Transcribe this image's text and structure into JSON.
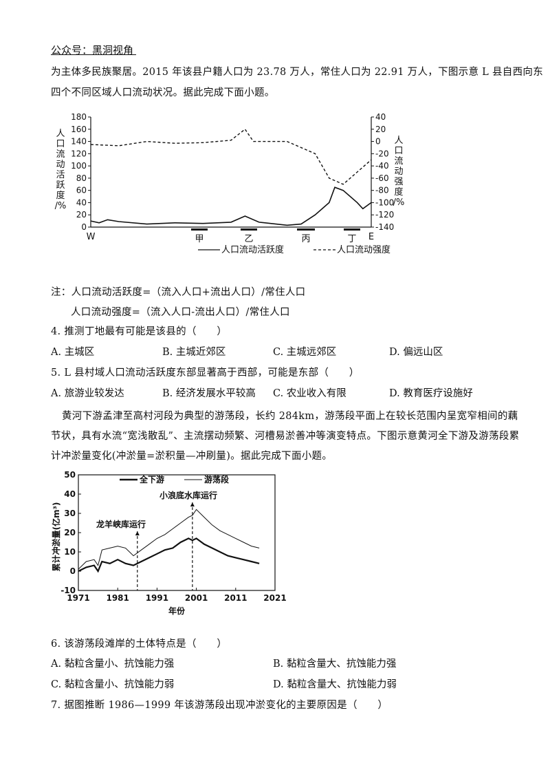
{
  "watermark": "公众号：黑洞视角",
  "intro": {
    "line1": "为主体多民族聚居。2015 年该县户籍人口为 23.78 万人，常住人口为 22.91 万人，下图示意 L 县自西向东",
    "line2": "四个不同区域人口流动状况。据此完成下面小题。"
  },
  "chart1": {
    "left_axis_label": [
      "人",
      "口",
      "流",
      "动",
      "活",
      "跃",
      "度",
      "/%"
    ],
    "right_axis_label": [
      "人",
      "口",
      "流",
      "动",
      "强",
      "度",
      "/%"
    ],
    "left_ticks": [
      "180",
      "160",
      "140",
      "120",
      "100",
      "80",
      "60",
      "40",
      "20",
      "0"
    ],
    "right_ticks": [
      "40",
      "20",
      "0",
      "-20",
      "-40",
      "-60",
      "-80",
      "-100",
      "-120",
      "-140"
    ],
    "x_start": "W",
    "x_end": "E",
    "regions": [
      "甲",
      "乙",
      "丙",
      "丁"
    ],
    "legend_solid": "人口流动活跃度",
    "legend_dashed": "人口流动强度"
  },
  "chart1_data": {
    "type": "line",
    "x_range": [
      "W",
      "E"
    ],
    "left_axis": {
      "label": "人口流动活跃度/%",
      "range": [
        0,
        180
      ]
    },
    "right_axis": {
      "label": "人口流动强度/%",
      "range": [
        -140,
        40
      ]
    },
    "series": [
      {
        "name": "人口流动活跃度",
        "style": "solid",
        "axis": "left",
        "points": [
          [
            0,
            10
          ],
          [
            0.03,
            7
          ],
          [
            0.06,
            12
          ],
          [
            0.1,
            9
          ],
          [
            0.2,
            5
          ],
          [
            0.3,
            7
          ],
          [
            0.4,
            6
          ],
          [
            0.5,
            8
          ],
          [
            0.55,
            18
          ],
          [
            0.6,
            8
          ],
          [
            0.7,
            3
          ],
          [
            0.75,
            5
          ],
          [
            0.8,
            20
          ],
          [
            0.85,
            40
          ],
          [
            0.87,
            65
          ],
          [
            0.9,
            60
          ],
          [
            0.95,
            40
          ],
          [
            0.97,
            30
          ],
          [
            1,
            40
          ]
        ]
      },
      {
        "name": "人口流动强度",
        "style": "dashed",
        "axis": "right",
        "points": [
          [
            0,
            -5
          ],
          [
            0.1,
            -7
          ],
          [
            0.2,
            0
          ],
          [
            0.3,
            -3
          ],
          [
            0.4,
            -2
          ],
          [
            0.5,
            2
          ],
          [
            0.55,
            20
          ],
          [
            0.58,
            0
          ],
          [
            0.7,
            0
          ],
          [
            0.8,
            -20
          ],
          [
            0.85,
            -60
          ],
          [
            0.9,
            -70
          ],
          [
            0.95,
            -50
          ],
          [
            1,
            -30
          ]
        ]
      }
    ]
  },
  "notes": {
    "note1": "注：人口流动活跃度=（流入人口+流出人口）/常住人口",
    "note2": "人口流动强度=（流入人口-流出人口）/常住人口"
  },
  "q4": {
    "stem": "4. 推测丁地最有可能是该县的（　　）",
    "a": "A.  主城区",
    "b": "B.  主城近郊区",
    "c": "C.  主城远郊区",
    "d": "D.  偏远山区"
  },
  "q5": {
    "stem": "5. L 县村域人口流动活跃度东部显著高于西部，可能是东部（　　）",
    "a": "A.  旅游业较发达",
    "b": "B.  经济发展水平较高",
    "c": "C.  农业收入有限",
    "d": "D.  教育医疗设施好"
  },
  "passage2": {
    "line1": "黄河下游孟津至高村河段为典型的游荡段，长约 284km，游荡段平面上在较长范围内呈宽窄相间的藕",
    "line2": "节状，具有水流“宽浅散乱”、主流摆动频繁、河槽易淤善冲等演变特点。下图示意黄河全下游及游荡段累",
    "line3": "计冲淤量变化(冲淤量=淤积量—冲刷量)。据此完成下面小题。"
  },
  "chart2": {
    "legend_full": "全下游",
    "legend_wander": "游荡段",
    "ylabel": "累计冲淤量(亿m³)",
    "xlabel": "年份",
    "y_ticks": [
      "50",
      "40",
      "30",
      "20",
      "10",
      "0",
      "-10"
    ],
    "x_ticks": [
      "1971",
      "1981",
      "1991",
      "2001",
      "2011",
      "2021"
    ],
    "annotation1": "龙羊峡库运行",
    "annotation2": "小浪底水库运行"
  },
  "chart2_data": {
    "type": "line",
    "xlabel": "年份",
    "ylabel": "累计冲淤量(亿m³)",
    "xlim": [
      1971,
      2021
    ],
    "ylim": [
      -10,
      50
    ],
    "x": [
      1971,
      1973,
      1975,
      1976,
      1977,
      1979,
      1981,
      1983,
      1985,
      1987,
      1989,
      1991,
      1993,
      1995,
      1997,
      1999,
      2000,
      2001,
      2003,
      2005,
      2007,
      2009,
      2011,
      2013,
      2015,
      2017
    ],
    "series": [
      {
        "name": "全下游",
        "values": [
          0,
          2,
          3,
          0,
          5,
          4,
          6,
          4,
          3,
          5,
          7,
          9,
          11,
          12,
          15,
          17,
          16,
          17,
          14,
          12,
          10,
          8,
          7,
          6,
          5,
          4
        ]
      },
      {
        "name": "游荡段",
        "values": [
          1,
          5,
          6,
          3,
          11,
          12,
          13,
          12,
          8,
          11,
          14,
          17,
          19,
          22,
          25,
          28,
          29,
          32,
          28,
          24,
          21,
          19,
          17,
          15,
          13,
          12
        ]
      }
    ],
    "annotations": [
      {
        "x": 1986,
        "text": "龙羊峡库运行"
      },
      {
        "x": 2000,
        "text": "小浪底水库运行"
      }
    ]
  },
  "q6": {
    "stem": "6. 该游荡段滩岸的土体特点是（　　）",
    "a": "A.  黏粒含量小、抗蚀能力强",
    "b": "B.  黏粒含量大、抗蚀能力强",
    "c": "C.  黏粒含量小、抗蚀能力弱",
    "d": "D.  黏粒含量大、抗蚀能力弱"
  },
  "q7": {
    "stem": "7. 据图推断 1986—1999 年该游荡段出现冲淤变化的主要原因是（　　）"
  }
}
